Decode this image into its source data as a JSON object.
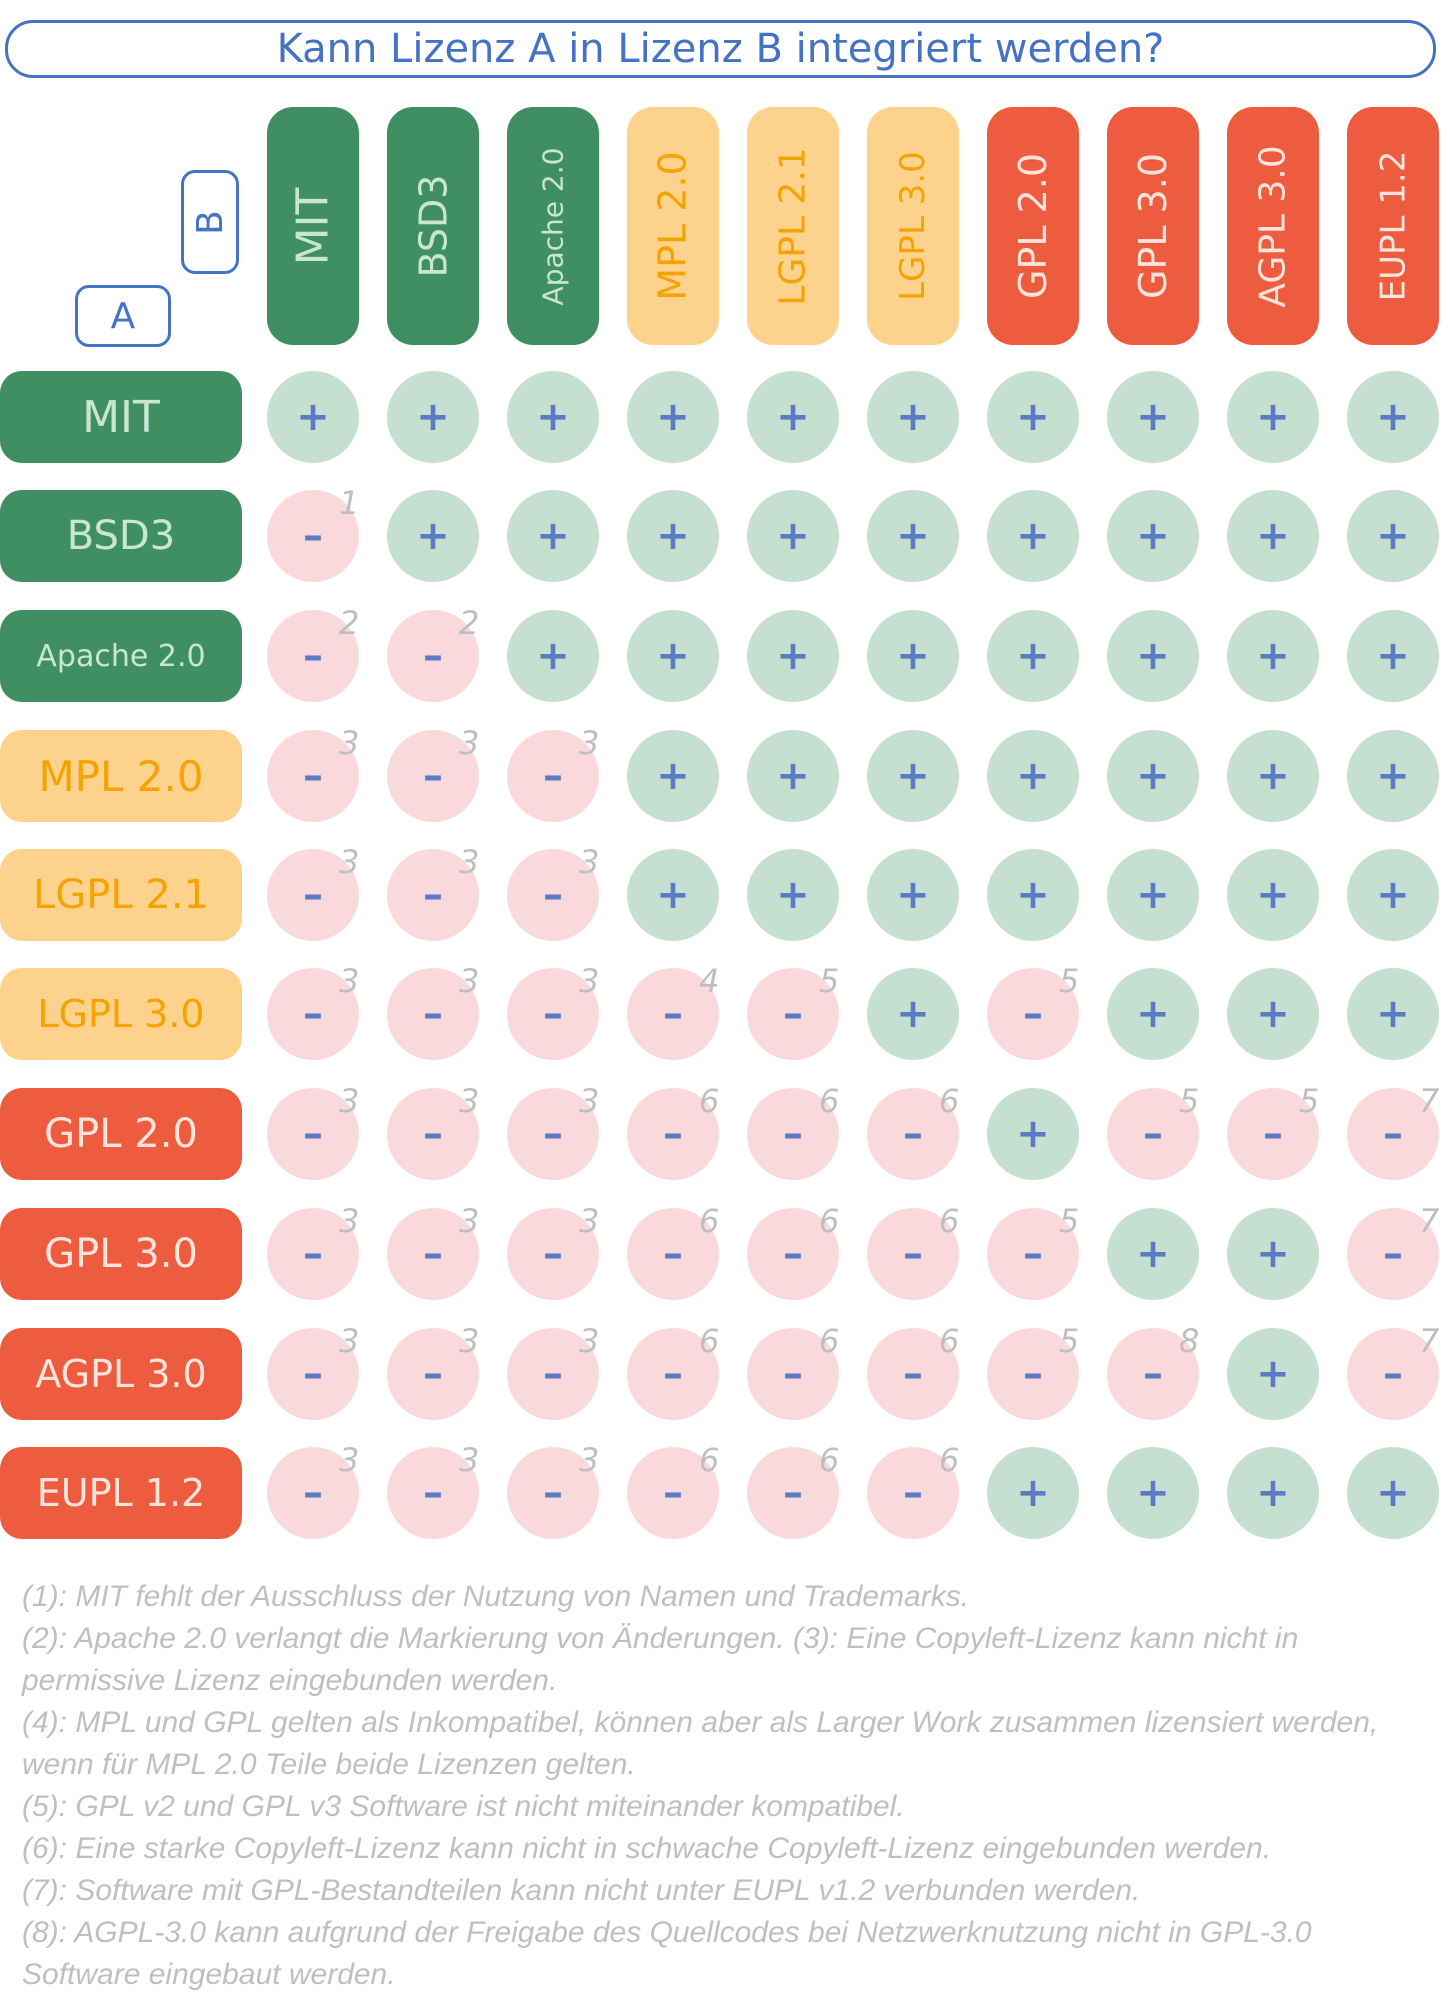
{
  "title": "Kann Lizenz A in Lizenz B integriert werden?",
  "axis": {
    "b_label": "B",
    "a_label": "A"
  },
  "colors": {
    "permissive": "#3F8F62",
    "weak_copyleft": "#FDD28D",
    "strong_copyleft": "#EE5C3F",
    "compatible": "#C5E0D0",
    "incompatible": "#F9D9DC",
    "mark": "#5B7BC4",
    "note": "#BFBFBF"
  },
  "licenses": [
    {
      "name": "MIT",
      "category": "permissive"
    },
    {
      "name": "BSD3",
      "category": "permissive"
    },
    {
      "name": "Apache 2.0",
      "category": "permissive"
    },
    {
      "name": "MPL 2.0",
      "category": "weak_copyleft"
    },
    {
      "name": "LGPL 2.1",
      "category": "weak_copyleft"
    },
    {
      "name": "LGPL 3.0",
      "category": "weak_copyleft"
    },
    {
      "name": "GPL 2.0",
      "category": "strong_copyleft"
    },
    {
      "name": "GPL 3.0",
      "category": "strong_copyleft"
    },
    {
      "name": "AGPL 3.0",
      "category": "strong_copyleft"
    },
    {
      "name": "EUPL 1.2",
      "category": "strong_copyleft"
    }
  ],
  "symbols": {
    "yes": "+",
    "no": "–"
  },
  "matrix": [
    [
      "+",
      "+",
      "+",
      "+",
      "+",
      "+",
      "+",
      "+",
      "+",
      "+"
    ],
    [
      "-1",
      "+",
      "+",
      "+",
      "+",
      "+",
      "+",
      "+",
      "+",
      "+"
    ],
    [
      "-2",
      "-2",
      "+",
      "+",
      "+",
      "+",
      "+",
      "+",
      "+",
      "+"
    ],
    [
      "-3",
      "-3",
      "-3",
      "+",
      "+",
      "+",
      "+",
      "+",
      "+",
      "+"
    ],
    [
      "-3",
      "-3",
      "-3",
      "+",
      "+",
      "+",
      "+",
      "+",
      "+",
      "+"
    ],
    [
      "-3",
      "-3",
      "-3",
      "-4",
      "-5",
      "+",
      "-5",
      "+",
      "+",
      "+"
    ],
    [
      "-3",
      "-3",
      "-3",
      "-6",
      "-6",
      "-6",
      "+",
      "-5",
      "-5",
      "-7"
    ],
    [
      "-3",
      "-3",
      "-3",
      "-6",
      "-6",
      "-6",
      "-5",
      "+",
      "+",
      "-7"
    ],
    [
      "-3",
      "-3",
      "-3",
      "-6",
      "-6",
      "-6",
      "-5",
      "-8",
      "+",
      "-7"
    ],
    [
      "-3",
      "-3",
      "-3",
      "-6",
      "-6",
      "-6",
      "+",
      "+",
      "+",
      "+"
    ]
  ],
  "footnotes": [
    "(1): MIT fehlt der Ausschluss der Nutzung von Namen und Trademarks.",
    "(2): Apache 2.0 verlangt die Markierung von Änderungen. (3): Eine Copyleft-Lizenz kann nicht in permissive Lizenz eingebunden werden.",
    "(4): MPL und GPL gelten als Inkompatibel, können aber als Larger Work zusammen lizensiert werden, wenn für MPL 2.0 Teile beide Lizenzen gelten.",
    "(5): GPL v2 und GPL v3 Software ist nicht miteinander kompatibel.",
    "(6): Eine starke Copyleft-Lizenz kann nicht in schwache Copyleft-Lizenz eingebunden werden.",
    "(7): Software mit GPL-Bestandteilen kann nicht unter EUPL v1.2 verbunden werden.",
    "(8): AGPL-3.0 kann aufgrund der Freigabe des Quellcodes bei Netzwerknutzung nicht in GPL-3.0 Software eingebaut werden."
  ]
}
